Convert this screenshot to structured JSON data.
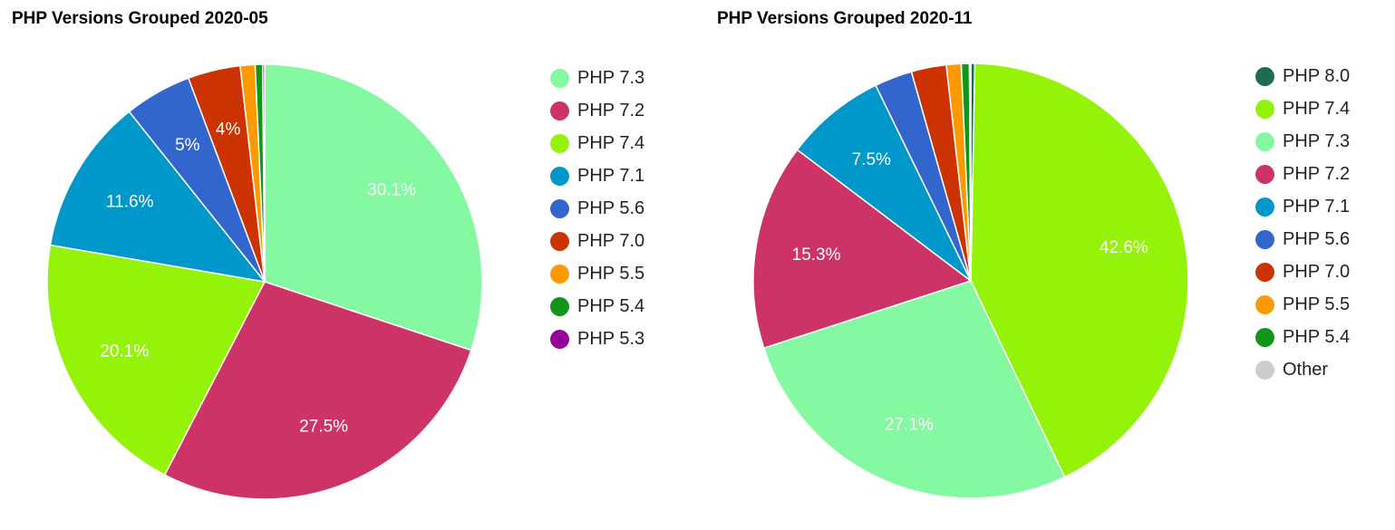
{
  "chart_data": [
    {
      "type": "pie",
      "title": "PHP Versions Grouped 2020-05",
      "legend_position": "right",
      "slices": [
        {
          "label": "PHP 7.3",
          "value": 30.1,
          "display": "30.1%",
          "color": "#85f9a1"
        },
        {
          "label": "PHP 7.2",
          "value": 27.5,
          "display": "27.5%",
          "color": "#cd3367"
        },
        {
          "label": "PHP 7.4",
          "value": 20.1,
          "display": "20.1%",
          "color": "#95f30a"
        },
        {
          "label": "PHP 7.1",
          "value": 11.6,
          "display": "11.6%",
          "color": "#0097ca"
        },
        {
          "label": "PHP 5.6",
          "value": 5.0,
          "display": "5%",
          "color": "#3366cc"
        },
        {
          "label": "PHP 7.0",
          "value": 3.9,
          "display": "4%",
          "color": "#cc3300"
        },
        {
          "label": "PHP 5.5",
          "value": 1.1,
          "display": "",
          "color": "#ff9900"
        },
        {
          "label": "PHP 5.4",
          "value": 0.55,
          "display": "",
          "color": "#109618"
        },
        {
          "label": "PHP 5.3",
          "value": 0.15,
          "display": "",
          "color": "#990099"
        }
      ]
    },
    {
      "type": "pie",
      "title": "PHP Versions Grouped 2020-11",
      "legend_position": "right",
      "slices": [
        {
          "label": "PHP 8.0",
          "value": 0.3,
          "display": "",
          "color": "#1d6b52"
        },
        {
          "label": "PHP 7.4",
          "value": 42.6,
          "display": "42.6%",
          "color": "#95f30a"
        },
        {
          "label": "PHP 7.3",
          "value": 27.1,
          "display": "27.1%",
          "color": "#85f9a1"
        },
        {
          "label": "PHP 7.2",
          "value": 15.3,
          "display": "15.3%",
          "color": "#cd3367"
        },
        {
          "label": "PHP 7.1",
          "value": 7.5,
          "display": "7.5%",
          "color": "#0097ca"
        },
        {
          "label": "PHP 5.6",
          "value": 2.8,
          "display": "",
          "color": "#3366cc"
        },
        {
          "label": "PHP 7.0",
          "value": 2.6,
          "display": "",
          "color": "#cc3300"
        },
        {
          "label": "PHP 5.5",
          "value": 1.1,
          "display": "",
          "color": "#ff9900"
        },
        {
          "label": "PHP 5.4",
          "value": 0.6,
          "display": "",
          "color": "#109618"
        },
        {
          "label": "Other",
          "value": 0.1,
          "display": "",
          "color": "#cccccc"
        }
      ]
    }
  ]
}
